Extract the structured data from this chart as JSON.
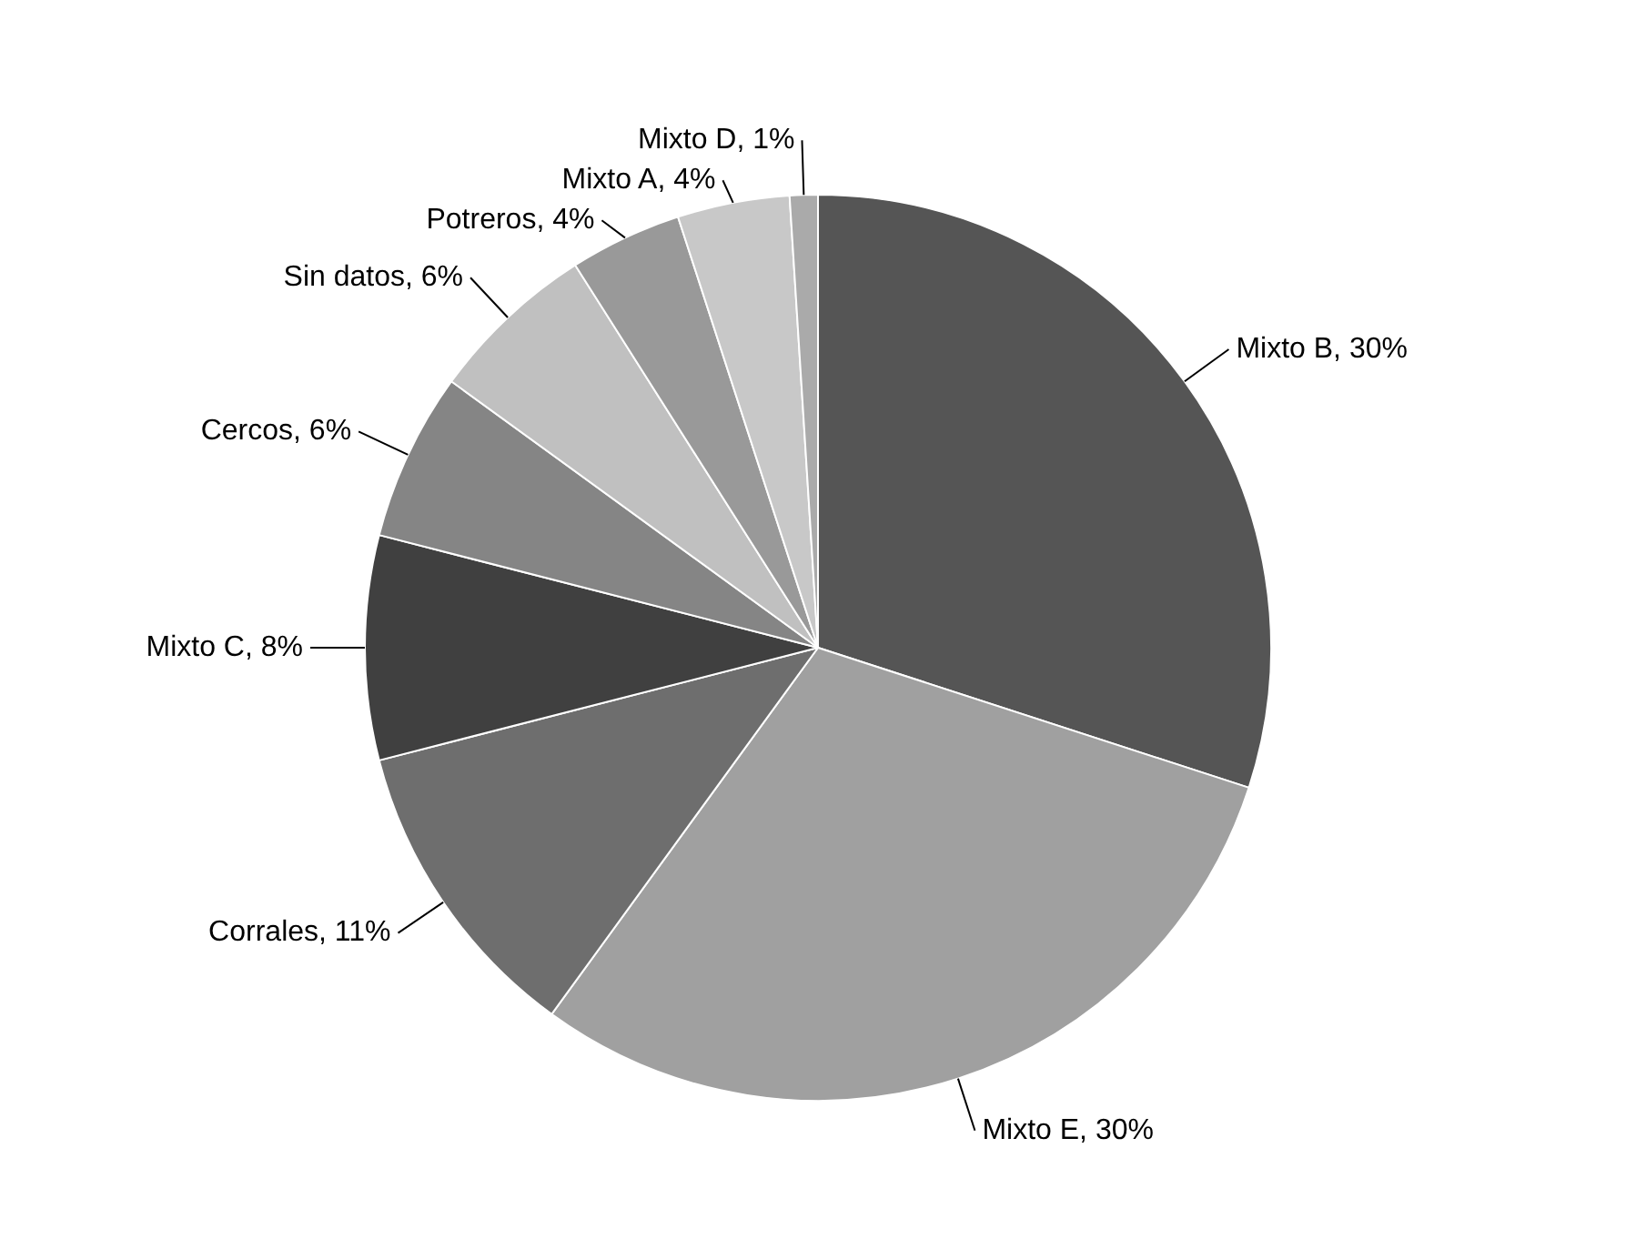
{
  "chart_data": {
    "type": "pie",
    "categories": [
      "Mixto B",
      "Mixto E",
      "Corrales",
      "Mixto C",
      "Cercos",
      "Sin datos",
      "Potreros",
      "Mixto A",
      "Mixto D"
    ],
    "values": [
      30,
      30,
      11,
      8,
      6,
      6,
      4,
      4,
      1
    ],
    "value_labels": [
      "30%",
      "30%",
      "11%",
      "8%",
      "6%",
      "6%",
      "4%",
      "4%",
      "1%"
    ],
    "colors": [
      "#555555",
      "#a0a0a0",
      "#6e6e6e",
      "#404040",
      "#858585",
      "#c0c0c0",
      "#999999",
      "#c8c8c8",
      "#aaaaaa"
    ],
    "legend": false
  }
}
